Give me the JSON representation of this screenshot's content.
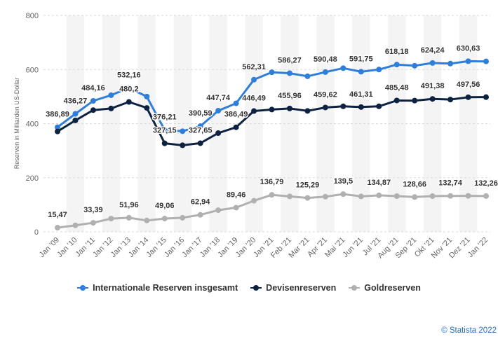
{
  "chart_data": {
    "type": "line",
    "ylabel": "Reserven in Milliarden US-Dollar",
    "xlabel": "",
    "ylim": [
      0,
      800
    ],
    "yticks": [
      "0",
      "200",
      "400",
      "600",
      "800"
    ],
    "categories": [
      "Jan '09",
      "Jan '10",
      "Jan '11",
      "Jan '12",
      "Jan '13",
      "Jan '14",
      "Jan '15",
      "Jan '16",
      "Jan '17",
      "Jan '18",
      "Jan '19",
      "Jan '20",
      "Jan '21",
      "Feb '21",
      "Mar '21",
      "Apr '21",
      "Mai '21",
      "Jun '21",
      "Jul '21",
      "Aug '21",
      "Sep '21",
      "Okt '21",
      "Nov '21",
      "Dez '21",
      "Jan '22"
    ],
    "series": [
      {
        "name": "Internationale Reserven insgesamt",
        "color": "#2f7ed8",
        "values": [
          386.89,
          436.27,
          484.16,
          505,
          532.16,
          500,
          376.21,
          372,
          390.59,
          447.74,
          475,
          562.31,
          590,
          586.27,
          575,
          590.48,
          605,
          591.75,
          600,
          618.18,
          614,
          624.24,
          622,
          630.63,
          630
        ],
        "labels": [
          "386,89",
          "436,27",
          "484,16",
          "",
          "532,16",
          "",
          "376,21",
          "",
          "390,59",
          "447,74",
          "",
          "562,31",
          "",
          "586,27",
          "",
          "590,48",
          "",
          "591,75",
          "",
          "618,18",
          "",
          "624,24",
          "",
          "630,63",
          ""
        ]
      },
      {
        "name": "Devisenreserven",
        "color": "#0d2240",
        "values": [
          371,
          412,
          450,
          456,
          480.2,
          458,
          327.15,
          320,
          327.65,
          365,
          386.49,
          446.49,
          452,
          455.96,
          447,
          459.62,
          464,
          461.31,
          464,
          485.48,
          485,
          491.38,
          489,
          497.56,
          498
        ],
        "labels": [
          "",
          "",
          "",
          "",
          "480,2",
          "",
          "327,15",
          "",
          "327,65",
          "",
          "386,49",
          "446,49",
          "",
          "455,96",
          "",
          "459,62",
          "",
          "461,31",
          "",
          "485,48",
          "",
          "491,38",
          "",
          "497,56",
          ""
        ]
      },
      {
        "name": "Goldreserven",
        "color": "#b0b0b0",
        "values": [
          15.47,
          24,
          33.39,
          49,
          51.96,
          42,
          49.06,
          52,
          62.94,
          80,
          89.46,
          115,
          136.79,
          131,
          125.29,
          130,
          139.5,
          131,
          134.87,
          132,
          128.66,
          132,
          132.74,
          133,
          132.26
        ],
        "labels": [
          "15,47",
          "",
          "33,39",
          "",
          "51,96",
          "",
          "49,06",
          "",
          "62,94",
          "",
          "89,46",
          "",
          "136,79",
          "",
          "125,29",
          "",
          "139,5",
          "",
          "134,87",
          "",
          "128,66",
          "",
          "132,74",
          "",
          "132,26"
        ]
      }
    ]
  },
  "credit": "© Statista 2022"
}
